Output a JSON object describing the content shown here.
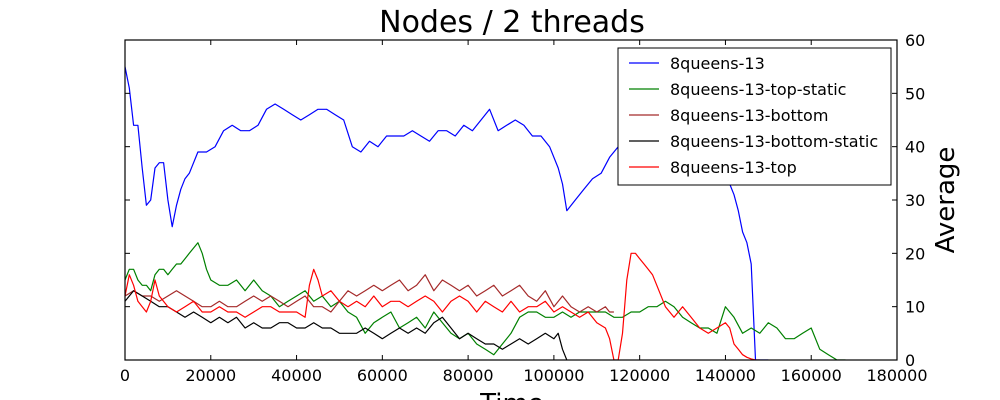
{
  "chart_data": {
    "type": "line",
    "title": "Nodes / 2 threads",
    "xlabel": "Time",
    "ylabel": "Average",
    "xlim": [
      0,
      180000
    ],
    "ylim": [
      0,
      60
    ],
    "y_axis_side": "right",
    "x_ticks": [
      0,
      20000,
      40000,
      60000,
      80000,
      100000,
      120000,
      140000,
      160000,
      180000
    ],
    "y_ticks": [
      0,
      10,
      20,
      30,
      40,
      50,
      60
    ],
    "x_tick_labels": [
      "0",
      "20000",
      "40000",
      "60000",
      "80000",
      "100000",
      "120000",
      "140000",
      "160000",
      "180000"
    ],
    "y_tick_labels": [
      "0",
      "10",
      "20",
      "30",
      "40",
      "50",
      "60"
    ],
    "grid": false,
    "legend_position": "top-right",
    "series": [
      {
        "name": "8queens-13",
        "color": "#0000ff",
        "x": [
          0,
          1000,
          2000,
          3000,
          4000,
          5000,
          6000,
          7000,
          8000,
          9000,
          10000,
          11000,
          12000,
          13000,
          14000,
          15000,
          17000,
          19000,
          21000,
          23000,
          25000,
          27000,
          29000,
          31000,
          33000,
          35000,
          37000,
          39000,
          41000,
          43000,
          45000,
          47000,
          49000,
          51000,
          53000,
          55000,
          57000,
          59000,
          61000,
          63000,
          65000,
          67000,
          69000,
          71000,
          73000,
          75000,
          77000,
          79000,
          81000,
          83000,
          85000,
          87000,
          89000,
          91000,
          93000,
          95000,
          97000,
          99000,
          101000,
          102000,
          103000,
          105000,
          107000,
          109000,
          111000,
          113000,
          115000,
          117000,
          119000,
          121000,
          123000,
          125000,
          127000,
          129000,
          131000,
          133000,
          135000,
          137000,
          139000,
          141000,
          142000,
          143000,
          144000,
          145000,
          146000,
          147000,
          148000,
          149000,
          150000
        ],
        "values": [
          55,
          51,
          44,
          44,
          36,
          29,
          30,
          36,
          37,
          37,
          30,
          25,
          29,
          32,
          34,
          35,
          39,
          39,
          40,
          43,
          44,
          43,
          43,
          44,
          47,
          48,
          47,
          46,
          45,
          46,
          47,
          47,
          46,
          45,
          40,
          39,
          41,
          40,
          42,
          42,
          42,
          43,
          42,
          41,
          43,
          43,
          42,
          44,
          43,
          45,
          47,
          43,
          44,
          45,
          44,
          42,
          42,
          40,
          36,
          33,
          28,
          30,
          32,
          34,
          35,
          38,
          40,
          39,
          41,
          43,
          42,
          41,
          40,
          39,
          33,
          33,
          36,
          35,
          34,
          33,
          31,
          28,
          24,
          22,
          18,
          0,
          0,
          0,
          0
        ]
      },
      {
        "name": "8queens-13-top-static",
        "color": "#008000",
        "x": [
          0,
          1000,
          2000,
          3000,
          4000,
          5000,
          6000,
          7000,
          8000,
          9000,
          10000,
          11000,
          12000,
          13000,
          14000,
          15000,
          16000,
          17000,
          18000,
          19000,
          20000,
          22000,
          24000,
          26000,
          28000,
          30000,
          32000,
          34000,
          36000,
          38000,
          40000,
          42000,
          44000,
          46000,
          48000,
          50000,
          52000,
          54000,
          56000,
          58000,
          60000,
          62000,
          64000,
          66000,
          68000,
          70000,
          72000,
          74000,
          76000,
          78000,
          80000,
          82000,
          84000,
          86000,
          88000,
          90000,
          92000,
          94000,
          96000,
          98000,
          100000,
          102000,
          104000,
          106000,
          108000,
          110000,
          112000,
          114000,
          116000,
          118000,
          120000,
          122000,
          124000,
          126000,
          128000,
          130000,
          132000,
          134000,
          136000,
          138000,
          140000,
          142000,
          144000,
          146000,
          148000,
          150000,
          152000,
          154000,
          156000,
          158000,
          160000,
          162000,
          164000,
          166000,
          168000
        ],
        "values": [
          15,
          17,
          17,
          15,
          14,
          14,
          13,
          16,
          17,
          17,
          16,
          17,
          18,
          18,
          19,
          20,
          21,
          22,
          20,
          17,
          15,
          14,
          14,
          15,
          13,
          15,
          13,
          12,
          10,
          11,
          12,
          13,
          11,
          12,
          10,
          11,
          9,
          8,
          5,
          7,
          8,
          9,
          6,
          7,
          8,
          6,
          9,
          7,
          5,
          4,
          5,
          3,
          2,
          1,
          3,
          5,
          8,
          9,
          9,
          8,
          8,
          9,
          8,
          9,
          9,
          9,
          9,
          8,
          8,
          9,
          9,
          10,
          10,
          11,
          10,
          8,
          7,
          6,
          6,
          5,
          10,
          8,
          5,
          6,
          5,
          7,
          6,
          4,
          4,
          5,
          6,
          2,
          1,
          0,
          0
        ]
      },
      {
        "name": "8queens-13-bottom",
        "color": "#a52a2a",
        "x": [
          0,
          2000,
          4000,
          6000,
          8000,
          10000,
          12000,
          14000,
          16000,
          18000,
          20000,
          22000,
          24000,
          26000,
          28000,
          30000,
          32000,
          34000,
          36000,
          38000,
          40000,
          42000,
          44000,
          46000,
          48000,
          50000,
          52000,
          54000,
          56000,
          58000,
          60000,
          62000,
          64000,
          66000,
          68000,
          70000,
          72000,
          74000,
          76000,
          78000,
          80000,
          82000,
          84000,
          86000,
          88000,
          90000,
          92000,
          94000,
          96000,
          98000,
          100000,
          102000,
          104000,
          106000,
          108000,
          110000,
          112000,
          113000,
          114000
        ],
        "values": [
          12,
          13,
          12,
          12,
          11,
          12,
          13,
          12,
          11,
          10,
          10,
          11,
          10,
          10,
          11,
          12,
          11,
          12,
          11,
          10,
          11,
          12,
          10,
          10,
          9,
          11,
          13,
          12,
          13,
          14,
          13,
          14,
          15,
          13,
          14,
          16,
          13,
          15,
          14,
          13,
          14,
          12,
          13,
          14,
          12,
          13,
          14,
          12,
          11,
          13,
          10,
          12,
          10,
          9,
          10,
          9,
          10,
          9,
          9
        ]
      },
      {
        "name": "8queens-13-bottom-static",
        "color": "#000000",
        "x": [
          0,
          2000,
          4000,
          6000,
          8000,
          10000,
          12000,
          14000,
          16000,
          18000,
          20000,
          22000,
          24000,
          26000,
          28000,
          30000,
          32000,
          34000,
          36000,
          38000,
          40000,
          42000,
          44000,
          46000,
          48000,
          50000,
          52000,
          54000,
          56000,
          58000,
          60000,
          62000,
          64000,
          66000,
          68000,
          70000,
          72000,
          74000,
          76000,
          78000,
          80000,
          82000,
          84000,
          86000,
          88000,
          90000,
          92000,
          94000,
          96000,
          98000,
          100000,
          101000,
          102000,
          103000
        ],
        "values": [
          11,
          13,
          12,
          11,
          10,
          10,
          9,
          8,
          9,
          8,
          7,
          8,
          7,
          8,
          6,
          7,
          6,
          6,
          7,
          7,
          6,
          6,
          7,
          6,
          6,
          5,
          5,
          5,
          6,
          5,
          4,
          5,
          6,
          5,
          6,
          5,
          7,
          8,
          6,
          4,
          5,
          4,
          3,
          3,
          2,
          3,
          4,
          3,
          4,
          5,
          4,
          5,
          2,
          0
        ]
      },
      {
        "name": "8queens-13-top",
        "color": "#ff0000",
        "x": [
          0,
          1000,
          2000,
          3000,
          4000,
          5000,
          6000,
          7000,
          8000,
          10000,
          12000,
          14000,
          16000,
          18000,
          20000,
          22000,
          24000,
          26000,
          28000,
          30000,
          32000,
          34000,
          36000,
          38000,
          40000,
          42000,
          43000,
          44000,
          45000,
          46000,
          48000,
          50000,
          52000,
          54000,
          56000,
          58000,
          60000,
          62000,
          64000,
          66000,
          68000,
          70000,
          72000,
          74000,
          76000,
          78000,
          80000,
          82000,
          84000,
          86000,
          88000,
          90000,
          92000,
          94000,
          96000,
          98000,
          100000,
          102000,
          104000,
          106000,
          108000,
          110000,
          112000,
          113000,
          114000,
          115000,
          116000,
          117000,
          118000,
          119000,
          120000,
          121000,
          122000,
          123000,
          124000,
          126000,
          128000,
          130000,
          132000,
          134000,
          136000,
          138000,
          140000,
          141000,
          142000,
          143000,
          144000,
          145000,
          146000,
          147000,
          148000
        ],
        "values": [
          12,
          16,
          14,
          11,
          10,
          9,
          11,
          15,
          12,
          10,
          9,
          10,
          11,
          9,
          9,
          10,
          9,
          9,
          8,
          9,
          10,
          10,
          9,
          9,
          9,
          8,
          14,
          17,
          15,
          12,
          13,
          11,
          10,
          11,
          10,
          12,
          10,
          11,
          11,
          10,
          11,
          12,
          11,
          9,
          11,
          12,
          11,
          9,
          11,
          10,
          9,
          11,
          9,
          10,
          10,
          11,
          9,
          10,
          9,
          8,
          9,
          7,
          6,
          4,
          0,
          0,
          5,
          15,
          20,
          20,
          19,
          18,
          17,
          16,
          14,
          10,
          8,
          10,
          8,
          6,
          5,
          6,
          7,
          6,
          3,
          2,
          1,
          0.5,
          0.2,
          0,
          0
        ]
      }
    ]
  }
}
